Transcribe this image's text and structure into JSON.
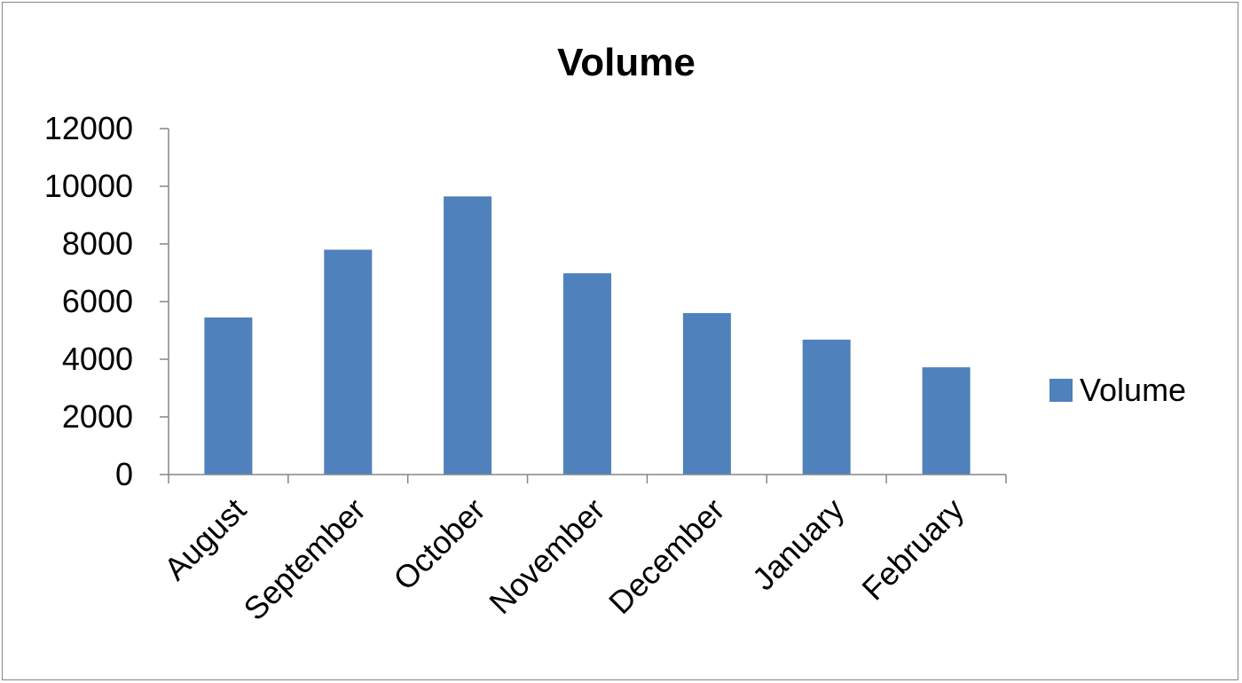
{
  "chart_data": {
    "type": "bar",
    "title": "Volume",
    "xlabel": "",
    "ylabel": "",
    "categories": [
      "August",
      "September",
      "October",
      "November",
      "December",
      "January",
      "February"
    ],
    "series": [
      {
        "name": "Volume",
        "color": "#4F81BD",
        "values": [
          5450,
          7800,
          9650,
          6980,
          5600,
          4680,
          3720
        ]
      }
    ],
    "ylim": [
      0,
      12000
    ],
    "yticks": [
      "0",
      "2000",
      "4000",
      "6000",
      "8000",
      "10000",
      "12000"
    ],
    "grid": false,
    "legend_position": "right"
  }
}
